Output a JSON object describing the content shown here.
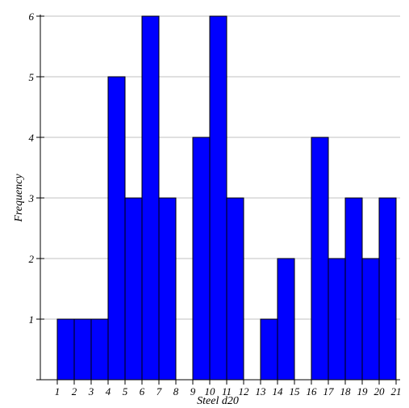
{
  "chart_data": {
    "type": "bar",
    "title": "",
    "xlabel": "Steel d20",
    "ylabel": "Frequency",
    "categories": [
      "1",
      "2",
      "3",
      "4",
      "5",
      "6",
      "7",
      "8",
      "9",
      "10",
      "11",
      "12",
      "13",
      "14",
      "15",
      "16",
      "17",
      "18",
      "19",
      "20",
      "21"
    ],
    "values": [
      1,
      1,
      1,
      5,
      3,
      6,
      3,
      0,
      4,
      6,
      3,
      0,
      1,
      2,
      0,
      4,
      2,
      3,
      2,
      3,
      0
    ],
    "x_ticks": [
      "1",
      "2",
      "3",
      "4",
      "5",
      "6",
      "7",
      "8",
      "9",
      "10",
      "11",
      "12",
      "13",
      "14",
      "15",
      "16",
      "17",
      "18",
      "19",
      "20",
      "21"
    ],
    "y_ticks": [
      "1",
      "2",
      "3",
      "4",
      "5",
      "6"
    ],
    "ylim": [
      0,
      6
    ],
    "grid": "horizontal",
    "bar_color": "#0000ff",
    "bar_edge_color": "#000000",
    "grid_color": "#c0c0c0"
  }
}
